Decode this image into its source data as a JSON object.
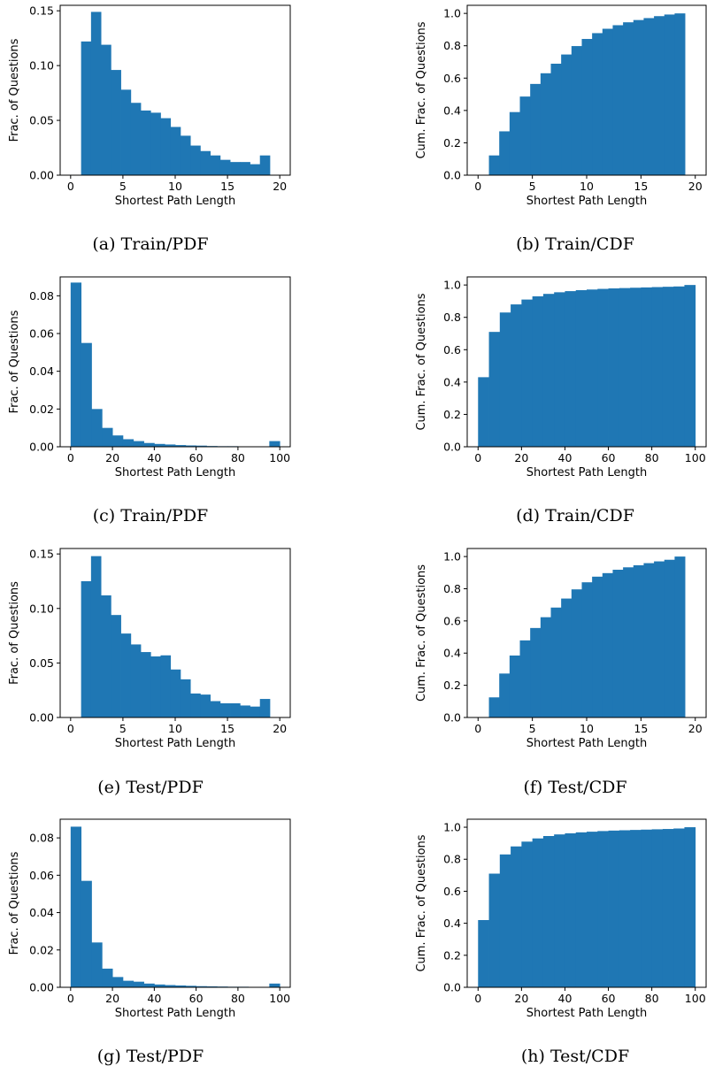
{
  "figure": {
    "captions": [
      "(a) Train/PDF",
      "(b) Train/CDF",
      "(c) Train/PDF",
      "(d) Train/CDF",
      "(e) Test/PDF",
      "(f) Test/CDF",
      "(g) Test/PDF",
      "(h) Test/CDF"
    ]
  },
  "chart_data": [
    {
      "type": "bar",
      "title": "",
      "caption": "(a) Train/PDF",
      "xlabel": "Shortest Path Length",
      "ylabel": "Frac. of Questions",
      "bin_width": 0.95,
      "x_start": 1,
      "values": [
        0.122,
        0.149,
        0.119,
        0.096,
        0.078,
        0.066,
        0.059,
        0.057,
        0.052,
        0.044,
        0.036,
        0.027,
        0.022,
        0.018,
        0.014,
        0.012,
        0.012,
        0.01,
        0.018
      ],
      "xlim": [
        -1,
        21
      ],
      "ylim": [
        0,
        0.155
      ],
      "xticks": [
        0,
        5,
        10,
        15,
        20
      ],
      "xticklabels": [
        "0",
        "5",
        "10",
        "15",
        "20"
      ],
      "yticks": [
        0,
        0.05,
        0.1,
        0.15
      ],
      "yticklabels": [
        "0.00",
        "0.05",
        "0.10",
        "0.15"
      ],
      "color": "#1f77b4"
    },
    {
      "type": "bar",
      "title": "",
      "caption": "(b) Train/CDF",
      "xlabel": "Shortest Path Length",
      "ylabel": "Cum. Frac. of Questions",
      "bin_width": 0.95,
      "x_start": 1,
      "values": [
        0.122,
        0.271,
        0.39,
        0.486,
        0.564,
        0.63,
        0.689,
        0.746,
        0.798,
        0.842,
        0.878,
        0.905,
        0.927,
        0.945,
        0.959,
        0.971,
        0.983,
        0.993,
        1.0
      ],
      "xlim": [
        -1,
        21
      ],
      "ylim": [
        0,
        1.05
      ],
      "xticks": [
        0,
        5,
        10,
        15,
        20
      ],
      "xticklabels": [
        "0",
        "5",
        "10",
        "15",
        "20"
      ],
      "yticks": [
        0,
        0.2,
        0.4,
        0.6,
        0.8,
        1.0
      ],
      "yticklabels": [
        "0.0",
        "0.2",
        "0.4",
        "0.6",
        "0.8",
        "1.0"
      ],
      "color": "#1f77b4"
    },
    {
      "type": "bar",
      "title": "",
      "caption": "(c) Train/PDF",
      "xlabel": "Shortest Path Length",
      "ylabel": "Frac. of Questions",
      "bin_width": 5,
      "x_start": 0,
      "values": [
        0.087,
        0.055,
        0.02,
        0.01,
        0.006,
        0.004,
        0.003,
        0.002,
        0.0015,
        0.0012,
        0.0009,
        0.0007,
        0.0006,
        0.0004,
        0.0003,
        0.0003,
        0.0002,
        0.0002,
        0.0002,
        0.003
      ],
      "xlim": [
        -5,
        105
      ],
      "ylim": [
        0,
        0.09
      ],
      "xticks": [
        0,
        20,
        40,
        60,
        80,
        100
      ],
      "xticklabels": [
        "0",
        "20",
        "40",
        "60",
        "80",
        "100"
      ],
      "yticks": [
        0,
        0.02,
        0.04,
        0.06,
        0.08
      ],
      "yticklabels": [
        "0.00",
        "0.02",
        "0.04",
        "0.06",
        "0.08"
      ],
      "color": "#1f77b4"
    },
    {
      "type": "bar",
      "title": "",
      "caption": "(d) Train/CDF",
      "xlabel": "Shortest Path Length",
      "ylabel": "Cum. Frac. of Questions",
      "bin_width": 5,
      "x_start": 0,
      "values": [
        0.43,
        0.71,
        0.83,
        0.88,
        0.91,
        0.93,
        0.945,
        0.955,
        0.962,
        0.968,
        0.972,
        0.976,
        0.979,
        0.981,
        0.983,
        0.985,
        0.987,
        0.989,
        0.991,
        1.0
      ],
      "xlim": [
        -5,
        105
      ],
      "ylim": [
        0,
        1.05
      ],
      "xticks": [
        0,
        20,
        40,
        60,
        80,
        100
      ],
      "xticklabels": [
        "0",
        "20",
        "40",
        "60",
        "80",
        "100"
      ],
      "yticks": [
        0,
        0.2,
        0.4,
        0.6,
        0.8,
        1.0
      ],
      "yticklabels": [
        "0.0",
        "0.2",
        "0.4",
        "0.6",
        "0.8",
        "1.0"
      ],
      "color": "#1f77b4"
    },
    {
      "type": "bar",
      "title": "",
      "caption": "(e) Test/PDF",
      "xlabel": "Shortest Path Length",
      "ylabel": "Frac. of Questions",
      "bin_width": 0.95,
      "x_start": 1,
      "values": [
        0.125,
        0.148,
        0.112,
        0.094,
        0.077,
        0.067,
        0.06,
        0.056,
        0.057,
        0.044,
        0.035,
        0.022,
        0.021,
        0.015,
        0.013,
        0.013,
        0.011,
        0.01,
        0.017
      ],
      "xlim": [
        -1,
        21
      ],
      "ylim": [
        0,
        0.155
      ],
      "xticks": [
        0,
        5,
        10,
        15,
        20
      ],
      "xticklabels": [
        "0",
        "5",
        "10",
        "15",
        "20"
      ],
      "yticks": [
        0,
        0.05,
        0.1,
        0.15
      ],
      "yticklabels": [
        "0.00",
        "0.05",
        "0.10",
        "0.15"
      ],
      "color": "#1f77b4"
    },
    {
      "type": "bar",
      "title": "",
      "caption": "(f) Test/CDF",
      "xlabel": "Shortest Path Length",
      "ylabel": "Cum. Frac. of Questions",
      "bin_width": 0.95,
      "x_start": 1,
      "values": [
        0.125,
        0.273,
        0.385,
        0.479,
        0.556,
        0.623,
        0.683,
        0.739,
        0.796,
        0.84,
        0.875,
        0.897,
        0.918,
        0.933,
        0.946,
        0.959,
        0.97,
        0.98,
        1.0
      ],
      "xlim": [
        -1,
        21
      ],
      "ylim": [
        0,
        1.05
      ],
      "xticks": [
        0,
        5,
        10,
        15,
        20
      ],
      "xticklabels": [
        "0",
        "5",
        "10",
        "15",
        "20"
      ],
      "yticks": [
        0,
        0.2,
        0.4,
        0.6,
        0.8,
        1.0
      ],
      "yticklabels": [
        "0.0",
        "0.2",
        "0.4",
        "0.6",
        "0.8",
        "1.0"
      ],
      "color": "#1f77b4"
    },
    {
      "type": "bar",
      "title": "",
      "caption": "(g) Test/PDF",
      "xlabel": "Shortest Path Length",
      "ylabel": "Frac. of Questions",
      "bin_width": 5,
      "x_start": 0,
      "values": [
        0.086,
        0.057,
        0.024,
        0.01,
        0.0055,
        0.0035,
        0.003,
        0.002,
        0.0015,
        0.0012,
        0.001,
        0.0008,
        0.0006,
        0.0005,
        0.0004,
        0.0003,
        0.0003,
        0.0002,
        0.0002,
        0.002
      ],
      "xlim": [
        -5,
        105
      ],
      "ylim": [
        0,
        0.09
      ],
      "xticks": [
        0,
        20,
        40,
        60,
        80,
        100
      ],
      "xticklabels": [
        "0",
        "20",
        "40",
        "60",
        "80",
        "100"
      ],
      "yticks": [
        0,
        0.02,
        0.04,
        0.06,
        0.08
      ],
      "yticklabels": [
        "0.00",
        "0.02",
        "0.04",
        "0.06",
        "0.08"
      ],
      "color": "#1f77b4"
    },
    {
      "type": "bar",
      "title": "",
      "caption": "(h) Test/CDF",
      "xlabel": "Shortest Path Length",
      "ylabel": "Cum. Frac. of Questions",
      "bin_width": 5,
      "x_start": 0,
      "values": [
        0.42,
        0.71,
        0.83,
        0.88,
        0.91,
        0.93,
        0.945,
        0.955,
        0.962,
        0.968,
        0.972,
        0.976,
        0.979,
        0.981,
        0.983,
        0.985,
        0.987,
        0.989,
        0.992,
        1.0
      ],
      "xlim": [
        -5,
        105
      ],
      "ylim": [
        0,
        1.05
      ],
      "xticks": [
        0,
        20,
        40,
        60,
        80,
        100
      ],
      "xticklabels": [
        "0",
        "20",
        "40",
        "60",
        "80",
        "100"
      ],
      "yticks": [
        0,
        0.2,
        0.4,
        0.6,
        0.8,
        1.0
      ],
      "yticklabels": [
        "0.0",
        "0.2",
        "0.4",
        "0.6",
        "0.8",
        "1.0"
      ],
      "color": "#1f77b4"
    }
  ]
}
